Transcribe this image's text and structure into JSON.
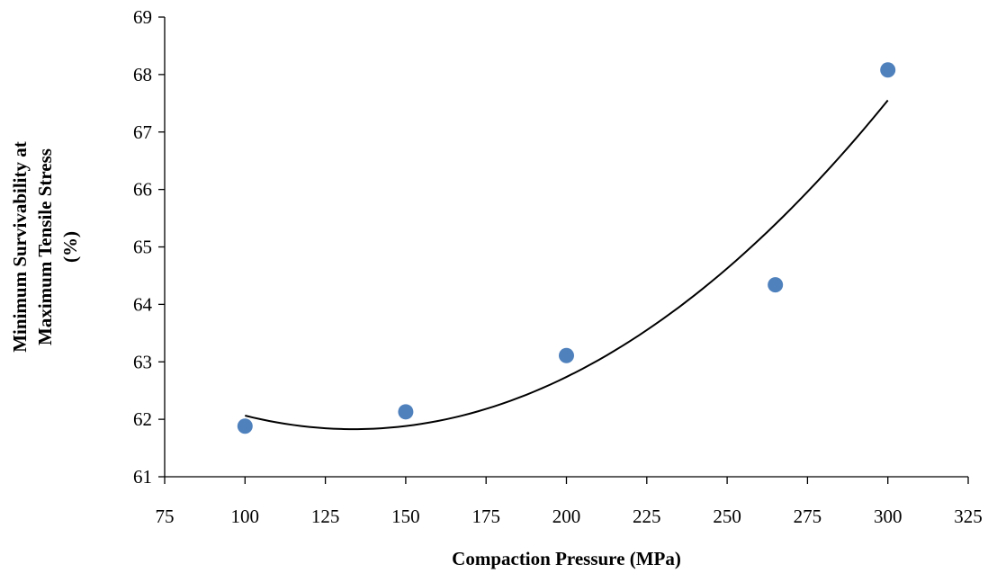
{
  "chart_data": {
    "type": "scatter",
    "title": "",
    "xlabel": "Compaction Pressure (MPa)",
    "ylabel_lines": [
      "Minimum Survivability at",
      "Maximum Tensile Stress",
      "(%)"
    ],
    "xlim": [
      75,
      325
    ],
    "ylim": [
      61,
      69
    ],
    "xticks": [
      75,
      100,
      125,
      150,
      175,
      200,
      225,
      250,
      275,
      300,
      325
    ],
    "yticks": [
      61,
      62,
      63,
      64,
      65,
      66,
      67,
      68,
      69
    ],
    "grid": false,
    "legend": "none",
    "series": [
      {
        "x": [
          100,
          150,
          200,
          265,
          300
        ],
        "y": [
          61.88,
          62.13,
          63.11,
          64.34,
          68.08
        ],
        "color": "#4f81bd"
      }
    ],
    "trendline": {
      "type": "polynomial-2",
      "x_range": [
        100,
        300
      ],
      "points": [
        [
          100,
          62.08
        ],
        [
          135,
          61.82
        ],
        [
          150,
          61.87
        ],
        [
          200,
          62.72
        ],
        [
          265,
          65.45
        ],
        [
          300,
          67.52
        ]
      ],
      "color": "#000000"
    }
  }
}
